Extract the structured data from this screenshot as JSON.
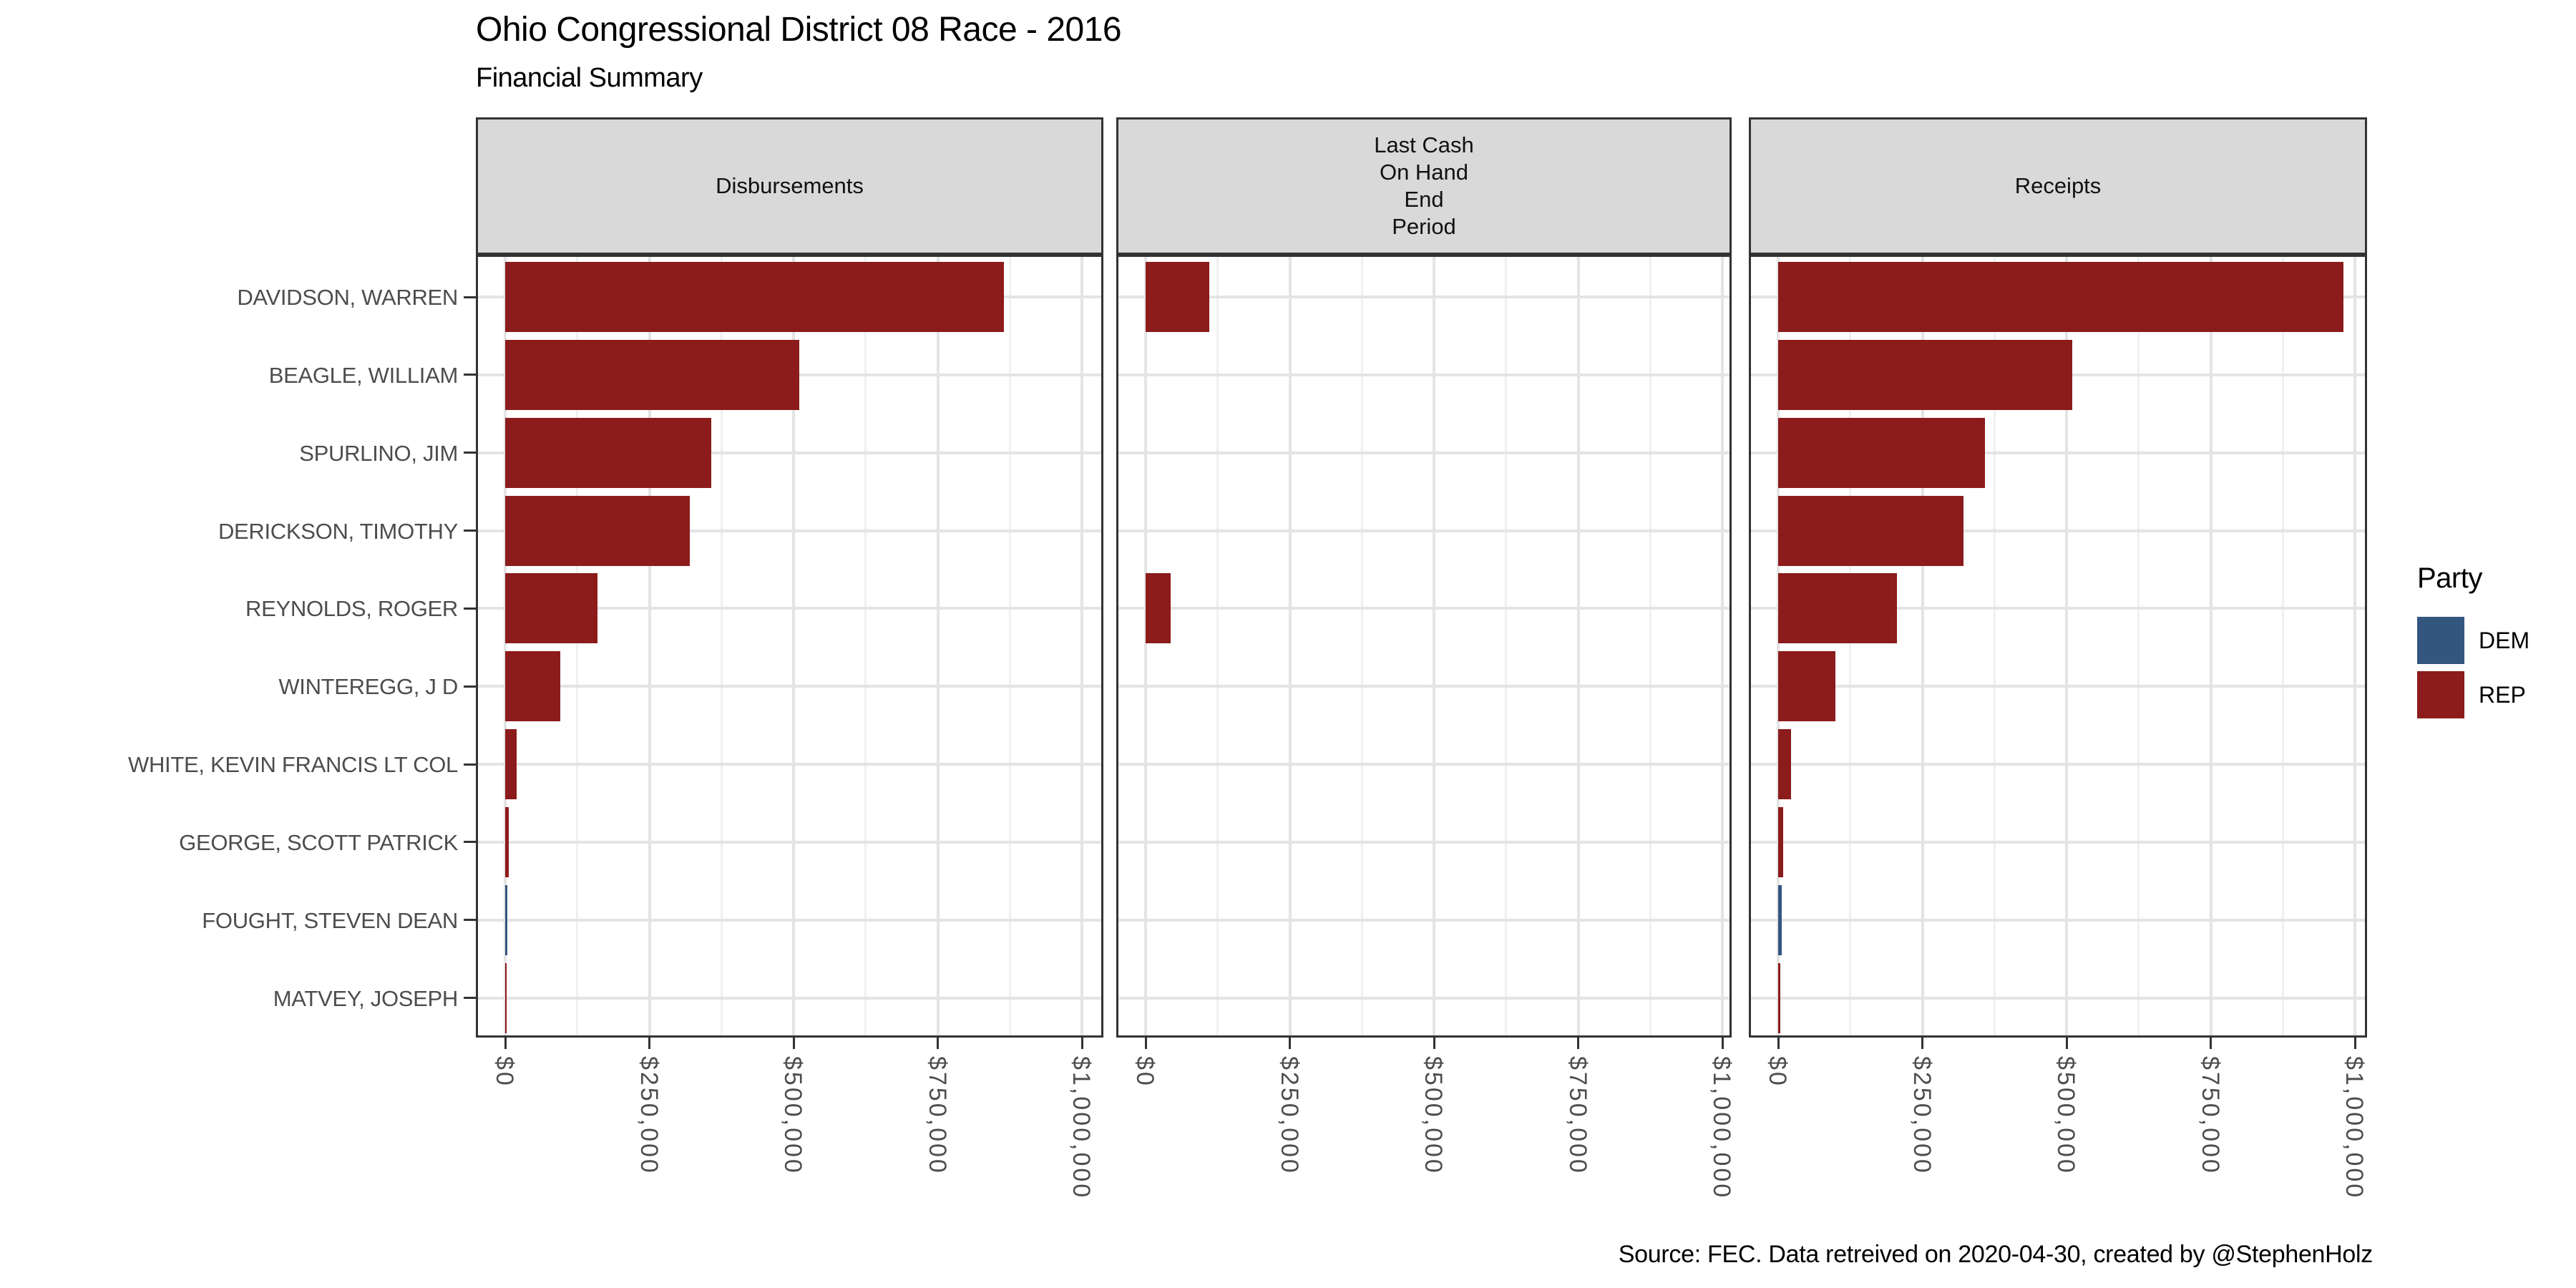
{
  "title": "Ohio Congressional District 08 Race - 2016",
  "subtitle": "Financial Summary",
  "caption": "Source: FEC. Data retreived on 2020-04-30, created by @StephenHolz",
  "facet_labels": [
    "Disbursements",
    "Last Cash\nOn Hand\nEnd\nPeriod",
    "Receipts"
  ],
  "legend": {
    "title": "Party",
    "entries": [
      {
        "label": "DEM",
        "color": "#33567E"
      },
      {
        "label": "REP",
        "color": "#8C1B1B"
      }
    ]
  },
  "colors": {
    "grid_major": "#E4E4E4",
    "grid_minor": "#F0F0F0",
    "axis_text": "#4D4D4D",
    "strip_background": "#D9D9D9",
    "panel_border": "#333333"
  },
  "chart_data": {
    "type": "bar",
    "orientation": "horizontal",
    "title": "Ohio Congressional District 08 Race - 2016",
    "subtitle": "Financial Summary",
    "categories": [
      "DAVIDSON, WARREN",
      "BEAGLE, WILLIAM",
      "SPURLINO, JIM",
      "DERICKSON, TIMOTHY",
      "REYNOLDS, ROGER",
      "WINTEREGG, J D",
      "WHITE, KEVIN FRANCIS LT COL",
      "GEORGE, SCOTT PATRICK",
      "FOUGHT, STEVEN DEAN",
      "MATVEY, JOSEPH"
    ],
    "category_party": [
      "REP",
      "REP",
      "REP",
      "REP",
      "REP",
      "REP",
      "REP",
      "REP",
      "DEM",
      "REP"
    ],
    "series": [
      {
        "name": "Disbursements",
        "values": [
          865000,
          510000,
          357000,
          320000,
          160000,
          95000,
          20000,
          6000,
          4000,
          3000
        ]
      },
      {
        "name": "Last Cash On Hand End Period",
        "values": [
          110000,
          0,
          0,
          0,
          43000,
          0,
          0,
          0,
          0,
          0
        ]
      },
      {
        "name": "Receipts",
        "values": [
          980000,
          510000,
          358000,
          321000,
          206000,
          99000,
          22000,
          9000,
          6000,
          4000
        ]
      }
    ],
    "x_ticks": [
      {
        "value": 0,
        "label": "$0"
      },
      {
        "value": 250000,
        "label": "$250,000"
      },
      {
        "value": 500000,
        "label": "$500,000"
      },
      {
        "value": 750000,
        "label": "$750,000"
      },
      {
        "value": 1000000,
        "label": "$1,000,000"
      }
    ],
    "x_minor_ticks": [
      125000,
      375000,
      625000,
      875000
    ],
    "xlim": [
      0,
      1070000
    ],
    "grid": true,
    "legend_title": "Party",
    "legend_entries": [
      "DEM",
      "REP"
    ],
    "legend_position": "right",
    "facet_row": "none",
    "facet_col": "financial metric"
  }
}
